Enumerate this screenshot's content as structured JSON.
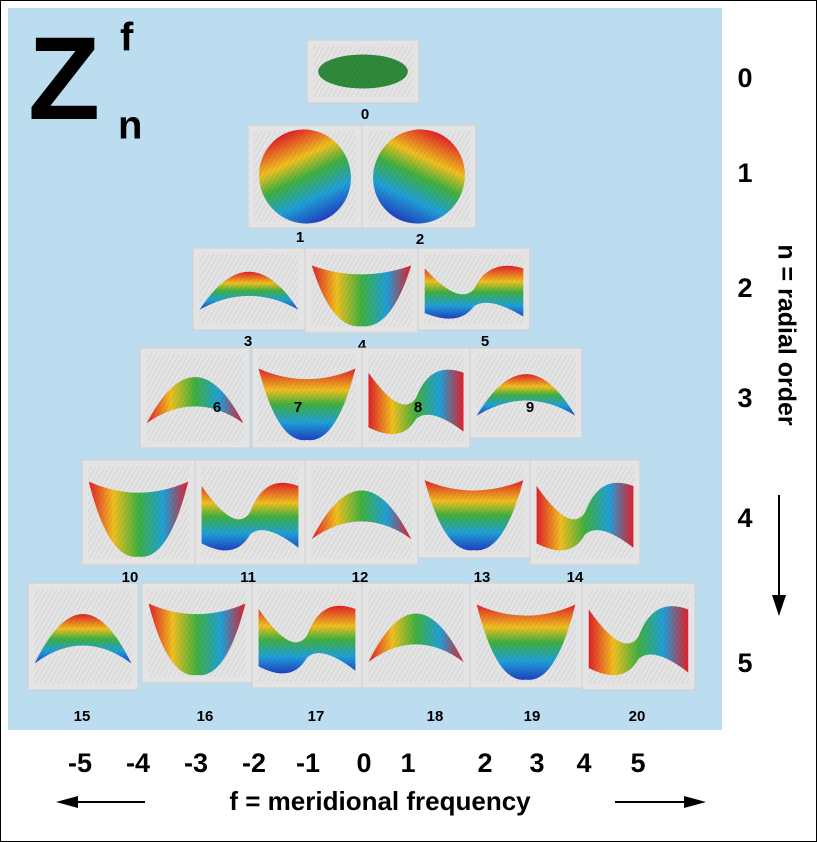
{
  "symbol": {
    "letter": "Z",
    "superscript": "f",
    "subscript": "n"
  },
  "radial_orders": [
    "0",
    "1",
    "2",
    "3",
    "4",
    "5"
  ],
  "radial_axis_label": "n = radial order",
  "frequencies": [
    "-5",
    "-4",
    "-3",
    "-2",
    "-1",
    "0",
    "1",
    "2",
    "3",
    "4",
    "5"
  ],
  "frequency_axis_label": "f = meridional frequency",
  "modes": [
    "0",
    "1",
    "2",
    "3",
    "4",
    "5",
    "6",
    "7",
    "8",
    "9",
    "10",
    "11",
    "12",
    "13",
    "14",
    "15",
    "16",
    "17",
    "18",
    "19",
    "20"
  ]
}
